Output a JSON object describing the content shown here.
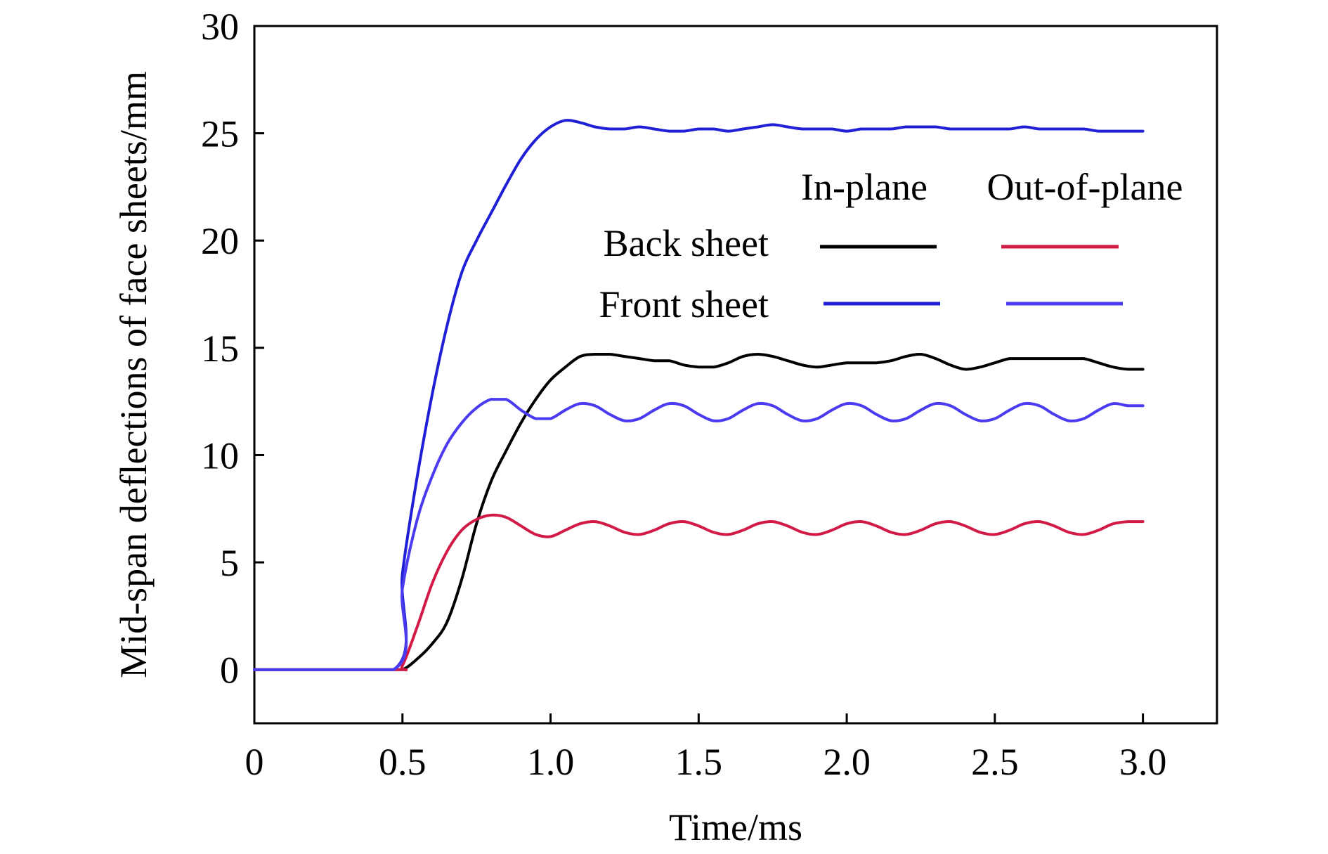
{
  "chart_data": {
    "type": "line",
    "title": "",
    "xlabel": "Time/ms",
    "ylabel": "Mid-span deflections of face sheets/mm",
    "xlim": [
      0,
      3.25
    ],
    "ylim": [
      -2.5,
      30
    ],
    "xticks": [
      0,
      0.5,
      1.0,
      1.5,
      2.0,
      2.5,
      3.0
    ],
    "xtick_labels": [
      "0",
      "0.5",
      "1.0",
      "1.5",
      "2.0",
      "2.5",
      "3.0"
    ],
    "yticks": [
      0,
      5,
      10,
      15,
      20,
      25,
      30
    ],
    "ytick_labels": [
      "0",
      "5",
      "10",
      "15",
      "20",
      "25",
      "30"
    ],
    "grid": false,
    "legend": {
      "placement": "top-right",
      "column_headers": [
        "In-plane",
        "Out-of-plane"
      ],
      "row_labels": [
        "Back sheet",
        "Front sheet"
      ]
    },
    "series": [
      {
        "name": "In-plane Back sheet",
        "color": "#000000",
        "x": [
          0,
          0.45,
          0.5,
          0.55,
          0.6,
          0.65,
          0.7,
          0.75,
          0.8,
          0.85,
          0.9,
          0.95,
          1.0,
          1.05,
          1.1,
          1.15,
          1.2,
          1.25,
          1.3,
          1.35,
          1.4,
          1.45,
          1.5,
          1.55,
          1.6,
          1.65,
          1.7,
          1.75,
          1.8,
          1.85,
          1.9,
          1.95,
          2.0,
          2.05,
          2.1,
          2.15,
          2.2,
          2.25,
          2.3,
          2.35,
          2.4,
          2.45,
          2.5,
          2.55,
          2.6,
          2.65,
          2.7,
          2.75,
          2.8,
          2.85,
          2.9,
          2.95,
          3.0
        ],
        "y": [
          0,
          0,
          0,
          0.5,
          1.2,
          2.2,
          4.2,
          6.8,
          8.8,
          10.2,
          11.5,
          12.6,
          13.5,
          14.1,
          14.6,
          14.7,
          14.7,
          14.6,
          14.5,
          14.4,
          14.4,
          14.2,
          14.1,
          14.1,
          14.3,
          14.6,
          14.7,
          14.6,
          14.4,
          14.2,
          14.1,
          14.2,
          14.3,
          14.3,
          14.3,
          14.4,
          14.6,
          14.7,
          14.5,
          14.2,
          14.0,
          14.1,
          14.3,
          14.5,
          14.5,
          14.5,
          14.5,
          14.5,
          14.5,
          14.3,
          14.1,
          14.0,
          14.0
        ]
      },
      {
        "name": "In-plane Front sheet",
        "color": "#1f1fd6",
        "x": [
          0,
          0.47,
          0.5,
          0.55,
          0.6,
          0.65,
          0.7,
          0.75,
          0.8,
          0.85,
          0.9,
          0.95,
          1.0,
          1.05,
          1.1,
          1.15,
          1.2,
          1.25,
          1.3,
          1.35,
          1.4,
          1.45,
          1.5,
          1.55,
          1.6,
          1.65,
          1.7,
          1.75,
          1.8,
          1.85,
          1.9,
          1.95,
          2.0,
          2.05,
          2.1,
          2.15,
          2.2,
          2.25,
          2.3,
          2.35,
          2.4,
          2.45,
          2.5,
          2.55,
          2.6,
          2.65,
          2.7,
          2.75,
          2.8,
          2.85,
          2.9,
          2.95,
          3.0
        ],
        "y": [
          0,
          0,
          4.5,
          9.0,
          12.8,
          16.0,
          18.5,
          20.0,
          21.3,
          22.6,
          23.8,
          24.7,
          25.3,
          25.6,
          25.5,
          25.3,
          25.2,
          25.2,
          25.3,
          25.2,
          25.1,
          25.1,
          25.2,
          25.2,
          25.1,
          25.2,
          25.3,
          25.4,
          25.3,
          25.2,
          25.2,
          25.2,
          25.1,
          25.2,
          25.2,
          25.2,
          25.3,
          25.3,
          25.3,
          25.2,
          25.2,
          25.2,
          25.2,
          25.2,
          25.3,
          25.2,
          25.2,
          25.2,
          25.2,
          25.1,
          25.1,
          25.1,
          25.1
        ]
      },
      {
        "name": "Out-of-plane Back sheet",
        "color": "#d11a46",
        "x": [
          0,
          0.47,
          0.5,
          0.55,
          0.6,
          0.65,
          0.7,
          0.75,
          0.8,
          0.85,
          0.9,
          0.95,
          1.0,
          1.05,
          1.1,
          1.15,
          1.2,
          1.25,
          1.3,
          1.35,
          1.4,
          1.45,
          1.5,
          1.55,
          1.6,
          1.65,
          1.7,
          1.75,
          1.8,
          1.85,
          1.9,
          1.95,
          2.0,
          2.05,
          2.1,
          2.15,
          2.2,
          2.25,
          2.3,
          2.35,
          2.4,
          2.45,
          2.5,
          2.55,
          2.6,
          2.65,
          2.7,
          2.75,
          2.8,
          2.85,
          2.9,
          2.95,
          3.0
        ],
        "y": [
          0,
          0,
          0.2,
          2.0,
          4.0,
          5.5,
          6.5,
          7.0,
          7.2,
          7.1,
          6.7,
          6.3,
          6.2,
          6.5,
          6.8,
          6.9,
          6.7,
          6.4,
          6.3,
          6.5,
          6.8,
          6.9,
          6.7,
          6.4,
          6.3,
          6.5,
          6.8,
          6.9,
          6.7,
          6.4,
          6.3,
          6.5,
          6.8,
          6.9,
          6.7,
          6.4,
          6.3,
          6.5,
          6.8,
          6.9,
          6.7,
          6.4,
          6.3,
          6.5,
          6.8,
          6.9,
          6.7,
          6.4,
          6.3,
          6.5,
          6.8,
          6.9,
          6.9
        ]
      },
      {
        "name": "Out-of-plane Front sheet",
        "color": "#4b3bf0",
        "x": [
          0,
          0.47,
          0.5,
          0.55,
          0.6,
          0.65,
          0.7,
          0.75,
          0.8,
          0.85,
          0.9,
          0.95,
          1.0,
          1.05,
          1.1,
          1.15,
          1.2,
          1.25,
          1.3,
          1.35,
          1.4,
          1.45,
          1.5,
          1.55,
          1.6,
          1.65,
          1.7,
          1.75,
          1.8,
          1.85,
          1.9,
          1.95,
          2.0,
          2.05,
          2.1,
          2.15,
          2.2,
          2.25,
          2.3,
          2.35,
          2.4,
          2.45,
          2.5,
          2.55,
          2.6,
          2.65,
          2.7,
          2.75,
          2.8,
          2.85,
          2.9,
          2.95,
          3.0
        ],
        "y": [
          0,
          0,
          3.8,
          7.0,
          9.0,
          10.5,
          11.5,
          12.2,
          12.6,
          12.6,
          12.1,
          11.7,
          11.7,
          12.1,
          12.4,
          12.3,
          11.9,
          11.6,
          11.7,
          12.1,
          12.4,
          12.3,
          11.9,
          11.6,
          11.7,
          12.1,
          12.4,
          12.3,
          11.9,
          11.6,
          11.7,
          12.1,
          12.4,
          12.3,
          11.9,
          11.6,
          11.7,
          12.1,
          12.4,
          12.3,
          11.9,
          11.6,
          11.7,
          12.1,
          12.4,
          12.3,
          11.9,
          11.6,
          11.7,
          12.1,
          12.4,
          12.3,
          12.3
        ]
      }
    ]
  }
}
